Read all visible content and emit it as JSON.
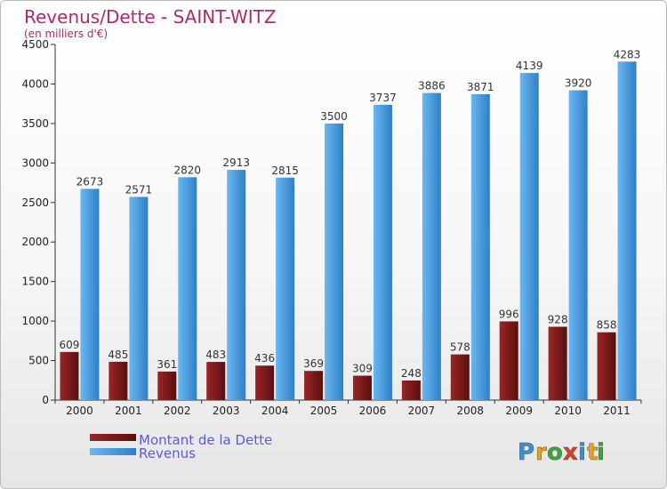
{
  "chart_data": {
    "type": "bar",
    "title": "Revenus/Dette - SAINT-WITZ",
    "subtitle": "(en milliers d'€)",
    "categories": [
      "2000",
      "2001",
      "2002",
      "2003",
      "2004",
      "2005",
      "2006",
      "2007",
      "2008",
      "2009",
      "2010",
      "2011"
    ],
    "series": [
      {
        "name": "Montant de la Dette",
        "color": "#7a1c1c",
        "values": [
          609,
          485,
          361,
          483,
          436,
          369,
          309,
          248,
          578,
          996,
          928,
          858
        ]
      },
      {
        "name": "Revenus",
        "color": "#3a91d9",
        "values": [
          2673,
          2571,
          2820,
          2913,
          2815,
          3500,
          3737,
          3886,
          3871,
          4139,
          3920,
          4283
        ]
      }
    ],
    "ylim": [
      0,
      4500
    ],
    "yticks": [
      0,
      500,
      1000,
      1500,
      2000,
      2500,
      3000,
      3500,
      4000,
      4500
    ],
    "grid": false,
    "legend_position": "bottom-left"
  },
  "logo": {
    "letters": [
      "P",
      "r",
      "o",
      "x",
      "i",
      "t",
      "i"
    ],
    "colors": [
      "#3a8fd6",
      "#e8a21a",
      "#3aa63a",
      "#d9402b",
      "#3a8fd6",
      "#e8a21a",
      "#3aa63a"
    ]
  }
}
